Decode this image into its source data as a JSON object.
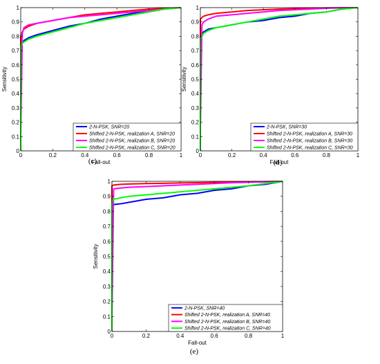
{
  "colors": {
    "blue": "#0000ff",
    "red": "#ff0000",
    "magenta": "#ff00ff",
    "green": "#00ff00"
  },
  "chart_data": [
    {
      "type": "line",
      "panel_label": "(c)",
      "xlabel": "Fall-out",
      "ylabel": "Sensitivity",
      "xlim": [
        0,
        1
      ],
      "ylim": [
        0,
        1
      ],
      "xticks": [
        "0",
        "0.2",
        "0.4",
        "0.6",
        "0.8",
        "1"
      ],
      "yticks": [
        "0",
        "0.1",
        "0.2",
        "0.3",
        "0.4",
        "0.5",
        "0.6",
        "0.7",
        "0.8",
        "0.9",
        "1"
      ],
      "grid": false,
      "legend_position": "bottom-right",
      "series": [
        {
          "name": "2-N-PSK, SNR=20",
          "color": "#0000ff",
          "x": [
            0,
            0,
            0.01,
            0.02,
            0.05,
            0.1,
            0.2,
            0.3,
            0.4,
            0.5,
            0.6,
            0.7,
            0.8,
            0.9,
            1
          ],
          "y": [
            0,
            0.73,
            0.75,
            0.77,
            0.79,
            0.81,
            0.84,
            0.87,
            0.89,
            0.92,
            0.94,
            0.96,
            0.98,
            0.99,
            1
          ]
        },
        {
          "name": "Shifted 2-N-PSK, realization A,  SNR=20",
          "color": "#ff0000",
          "x": [
            0,
            0,
            0.01,
            0.02,
            0.05,
            0.1,
            0.2,
            0.3,
            0.4,
            0.5,
            0.6,
            0.7,
            0.8,
            0.9,
            1
          ],
          "y": [
            0,
            0.8,
            0.83,
            0.85,
            0.87,
            0.89,
            0.91,
            0.93,
            0.95,
            0.96,
            0.97,
            0.98,
            0.99,
            0.995,
            1
          ]
        },
        {
          "name": "Shifted 2-N-PSK, realization B,  SNR=20",
          "color": "#ff00ff",
          "x": [
            0,
            0,
            0.01,
            0.02,
            0.05,
            0.1,
            0.2,
            0.3,
            0.4,
            0.5,
            0.6,
            0.7,
            0.8,
            0.9,
            1
          ],
          "y": [
            0,
            0.13,
            0.82,
            0.86,
            0.88,
            0.89,
            0.91,
            0.93,
            0.94,
            0.95,
            0.96,
            0.97,
            0.98,
            0.99,
            1
          ]
        },
        {
          "name": "Shifted 2-N-PSK, realization C,  SNR=20",
          "color": "#00ff00",
          "x": [
            0,
            0,
            0.01,
            0.02,
            0.05,
            0.1,
            0.2,
            0.3,
            0.4,
            0.5,
            0.6,
            0.7,
            0.8,
            0.9,
            1
          ],
          "y": [
            0,
            0.73,
            0.75,
            0.76,
            0.78,
            0.8,
            0.83,
            0.86,
            0.89,
            0.91,
            0.93,
            0.95,
            0.97,
            0.99,
            1
          ]
        }
      ]
    },
    {
      "type": "line",
      "panel_label": "(d)",
      "xlabel": "Fall-out",
      "ylabel": "Sensitivity",
      "xlim": [
        0,
        1
      ],
      "ylim": [
        0,
        1
      ],
      "xticks": [
        "0",
        "0.2",
        "0.4",
        "0.6",
        "0.8",
        "1"
      ],
      "yticks": [
        "0",
        "0.1",
        "0.2",
        "0.3",
        "0.4",
        "0.5",
        "0.6",
        "0.7",
        "0.8",
        "0.9",
        "1"
      ],
      "grid": false,
      "legend_position": "bottom-right",
      "series": [
        {
          "name": "2-N-PSK, SNR=30",
          "color": "#0000ff",
          "x": [
            0,
            0,
            0.01,
            0.02,
            0.05,
            0.1,
            0.2,
            0.3,
            0.4,
            0.5,
            0.6,
            0.7,
            0.8,
            0.9,
            1
          ],
          "y": [
            0,
            0.8,
            0.82,
            0.83,
            0.85,
            0.86,
            0.88,
            0.9,
            0.91,
            0.93,
            0.94,
            0.96,
            0.97,
            0.99,
            1
          ]
        },
        {
          "name": "Shifted 2-N-PSK, realization A,  SNR=30",
          "color": "#ff0000",
          "x": [
            0,
            0,
            0.01,
            0.02,
            0.05,
            0.1,
            0.2,
            0.3,
            0.4,
            0.5,
            0.6,
            0.7,
            0.8,
            0.9,
            1
          ],
          "y": [
            0,
            0.92,
            0.93,
            0.94,
            0.95,
            0.96,
            0.97,
            0.98,
            0.985,
            0.99,
            0.993,
            0.996,
            0.998,
            0.999,
            1
          ]
        },
        {
          "name": "Shifted 2-N-PSK, realization B,  SNR=30",
          "color": "#ff00ff",
          "x": [
            0,
            0,
            0.01,
            0.02,
            0.05,
            0.1,
            0.2,
            0.3,
            0.4,
            0.5,
            0.6,
            0.7,
            0.8,
            0.9,
            1
          ],
          "y": [
            0,
            0.15,
            0.88,
            0.9,
            0.92,
            0.94,
            0.95,
            0.96,
            0.97,
            0.98,
            0.985,
            0.99,
            0.995,
            0.998,
            1
          ]
        },
        {
          "name": "Shifted 2-N-PSK, realization C,  SNR=30",
          "color": "#00ff00",
          "x": [
            0,
            0,
            0.01,
            0.02,
            0.05,
            0.1,
            0.2,
            0.3,
            0.4,
            0.5,
            0.6,
            0.7,
            0.8,
            0.9,
            1
          ],
          "y": [
            0,
            0.78,
            0.8,
            0.82,
            0.84,
            0.86,
            0.88,
            0.9,
            0.92,
            0.94,
            0.95,
            0.96,
            0.97,
            0.99,
            1
          ]
        }
      ]
    },
    {
      "type": "line",
      "panel_label": "(e)",
      "xlabel": "Fall-out",
      "ylabel": "Sensitivity",
      "xlim": [
        0,
        1
      ],
      "ylim": [
        0,
        1
      ],
      "xticks": [
        "0",
        "0.2",
        "0.4",
        "0.6",
        "0.8",
        "1"
      ],
      "yticks": [
        "0",
        "0.1",
        "0.2",
        "0.3",
        "0.4",
        "0.5",
        "0.6",
        "0.7",
        "0.8",
        "0.9",
        "1"
      ],
      "grid": false,
      "legend_position": "bottom-right",
      "series": [
        {
          "name": "2-N-PSK, SNR=40",
          "color": "#0000ff",
          "x": [
            0,
            0,
            0.01,
            0.05,
            0.1,
            0.2,
            0.3,
            0.4,
            0.5,
            0.6,
            0.7,
            0.8,
            0.9,
            1
          ],
          "y": [
            0,
            0.84,
            0.845,
            0.85,
            0.86,
            0.88,
            0.89,
            0.91,
            0.92,
            0.94,
            0.95,
            0.97,
            0.98,
            1
          ]
        },
        {
          "name": "Shifted 2-N-PSK, realization A,  SNR=40",
          "color": "#ff0000",
          "x": [
            0,
            0,
            0.01,
            0.05,
            0.1,
            0.2,
            0.3,
            0.4,
            0.5,
            0.6,
            0.7,
            0.8,
            0.9,
            1
          ],
          "y": [
            0,
            0.97,
            0.975,
            0.98,
            0.982,
            0.985,
            0.987,
            0.989,
            0.991,
            0.993,
            0.995,
            0.997,
            0.998,
            1
          ]
        },
        {
          "name": "Shifted 2-N-PSK, realization B,  SNR=40",
          "color": "#ff00ff",
          "x": [
            0,
            0,
            0.01,
            0.05,
            0.1,
            0.2,
            0.3,
            0.4,
            0.5,
            0.6,
            0.7,
            0.8,
            0.9,
            1
          ],
          "y": [
            0,
            0.1,
            0.95,
            0.955,
            0.96,
            0.965,
            0.97,
            0.975,
            0.98,
            0.985,
            0.99,
            0.993,
            0.996,
            1
          ]
        },
        {
          "name": "Shifted 2-N-PSK, realization C,  SNR=40",
          "color": "#00ff00",
          "x": [
            0,
            0,
            0.01,
            0.05,
            0.1,
            0.2,
            0.3,
            0.4,
            0.5,
            0.6,
            0.7,
            0.8,
            0.9,
            1
          ],
          "y": [
            0,
            0.86,
            0.88,
            0.89,
            0.9,
            0.91,
            0.92,
            0.93,
            0.94,
            0.95,
            0.96,
            0.97,
            0.985,
            1
          ]
        }
      ]
    }
  ]
}
